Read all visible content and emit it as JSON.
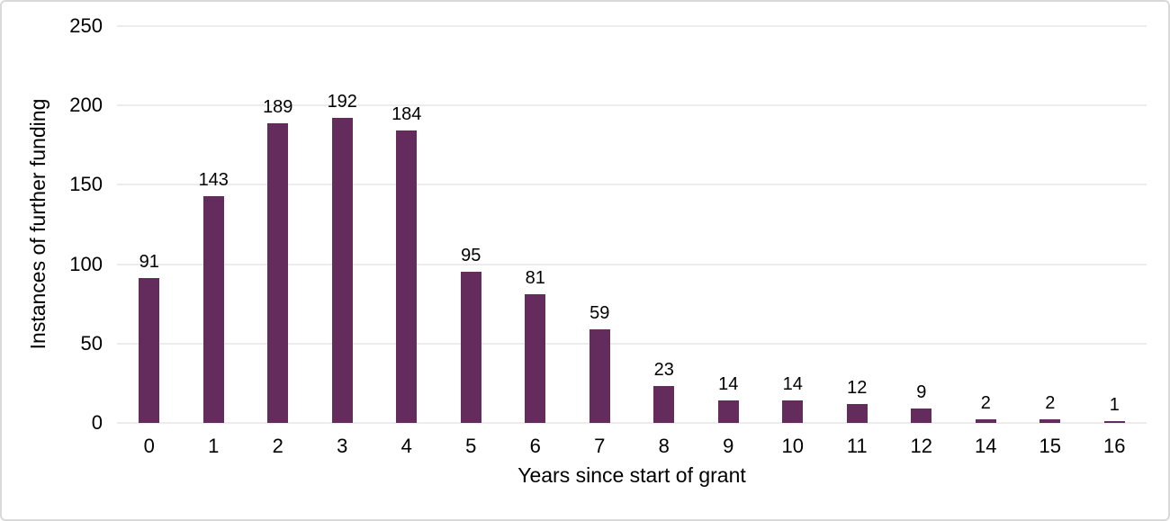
{
  "chart_data": {
    "type": "bar",
    "categories": [
      "0",
      "1",
      "2",
      "3",
      "4",
      "5",
      "6",
      "7",
      "8",
      "9",
      "10",
      "11",
      "12",
      "14",
      "15",
      "16"
    ],
    "values": [
      91,
      143,
      189,
      192,
      184,
      95,
      81,
      59,
      23,
      14,
      14,
      12,
      9,
      2,
      2,
      1
    ],
    "title": "",
    "xlabel": "Years since start of grant",
    "ylabel": "Instances of further funding",
    "ylim": [
      0,
      250
    ],
    "yticks": [
      0,
      50,
      100,
      150,
      200,
      250
    ],
    "grid": true,
    "data_labels": true,
    "legend": "none",
    "colors": {
      "bar": "#632c5c",
      "gridline": "#d9d9d9",
      "text": "#000000",
      "background": "#ffffff",
      "border": "#d9d9d9"
    }
  }
}
